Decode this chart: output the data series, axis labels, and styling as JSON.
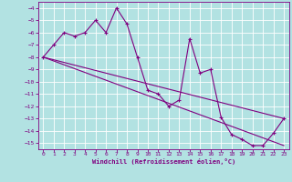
{
  "title": "",
  "xlabel": "Windchill (Refroidissement éolien,°C)",
  "bg_color": "#b2e2e2",
  "line_color": "#800080",
  "grid_color": "#ffffff",
  "xlim": [
    -0.5,
    23.5
  ],
  "ylim": [
    -15.5,
    -3.5
  ],
  "yticks": [
    -4,
    -5,
    -6,
    -7,
    -8,
    -9,
    -10,
    -11,
    -12,
    -13,
    -14,
    -15
  ],
  "xticks": [
    0,
    1,
    2,
    3,
    4,
    5,
    6,
    7,
    8,
    9,
    10,
    11,
    12,
    13,
    14,
    15,
    16,
    17,
    18,
    19,
    20,
    21,
    22,
    23
  ],
  "series1_x": [
    0,
    1,
    2,
    3,
    4,
    5,
    6,
    7,
    8,
    9,
    10,
    11,
    12,
    13,
    14,
    15,
    16,
    17,
    18,
    19,
    20,
    21,
    22,
    23
  ],
  "series1_y": [
    -8.0,
    -7.0,
    -6.0,
    -6.3,
    -6.0,
    -5.0,
    -6.0,
    -4.0,
    -5.3,
    -8.0,
    -10.7,
    -11.0,
    -12.0,
    -11.5,
    -6.5,
    -9.3,
    -9.0,
    -12.9,
    -14.3,
    -14.7,
    -15.2,
    -15.2,
    -14.2,
    -13.0
  ],
  "series2_x": [
    0,
    23
  ],
  "series2_y": [
    -8.0,
    -13.0
  ],
  "series3_x": [
    0,
    23
  ],
  "series3_y": [
    -8.0,
    -15.2
  ]
}
